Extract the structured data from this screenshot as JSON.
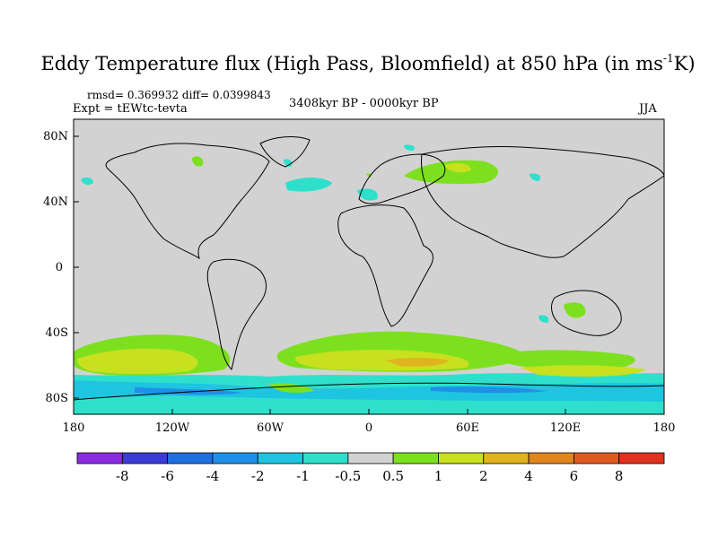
{
  "title": {
    "main": "Eddy Temperature flux (High Pass, Bloomfield) at 850 hPa (in ms",
    "superscript": "-1",
    "suffix": "K)"
  },
  "stats": "rmsd= 0.369932  diff= 0.0399843",
  "experiment": "Expt = tEWtc-tevta",
  "period": "3408kyr BP - 0000kyr BP",
  "season": "JJA",
  "map": {
    "lat_ticks": [
      "80N",
      "40N",
      "0",
      "40S",
      "80S"
    ],
    "lon_ticks": [
      "180",
      "120W",
      "60W",
      "0",
      "60E",
      "120E",
      "180"
    ],
    "lat_range": [
      -90,
      90
    ],
    "lon_range": [
      -180,
      180
    ],
    "background_color": "#d2d2d2"
  },
  "colorbar": {
    "labels": [
      "-8",
      "-6",
      "-4",
      "-2",
      "-1",
      "-0.5",
      "0.5",
      "1",
      "2",
      "4",
      "6",
      "8"
    ],
    "colors": [
      "#8a2be2",
      "#3b3bd6",
      "#1f6fe0",
      "#1e90e8",
      "#1ec4e0",
      "#2ee0cc",
      "#d2d2d2",
      "#7de01e",
      "#c8e01e",
      "#e0b41e",
      "#e0861e",
      "#e05a1e",
      "#e0321e"
    ]
  }
}
